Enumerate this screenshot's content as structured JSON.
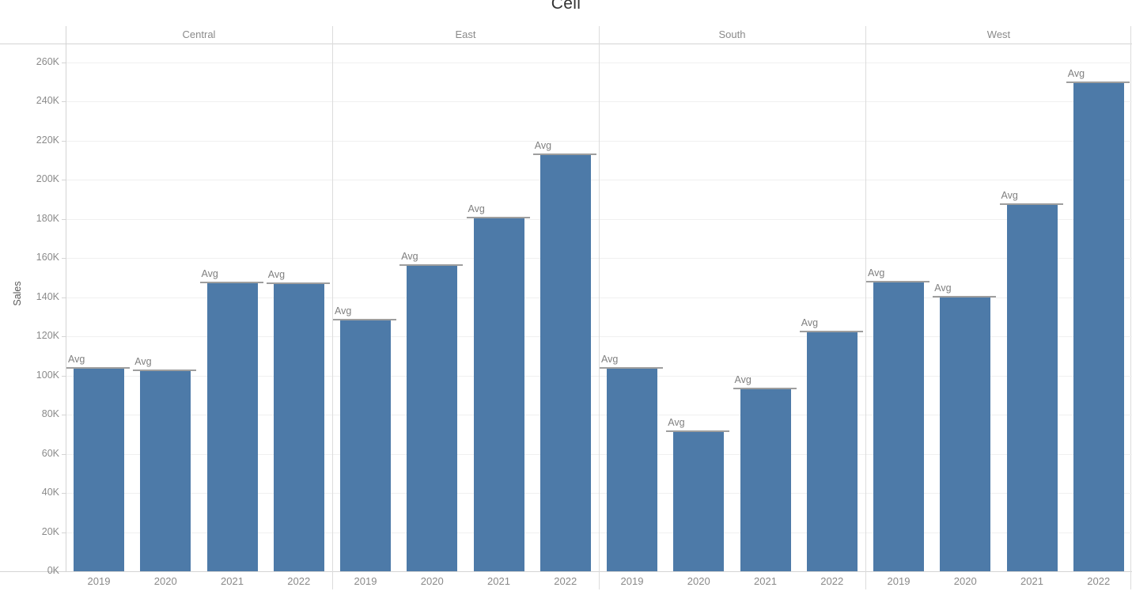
{
  "title": "Cell",
  "y_axis": {
    "label": "Sales",
    "tick_labels": [
      "0K",
      "20K",
      "40K",
      "60K",
      "80K",
      "100K",
      "120K",
      "140K",
      "160K",
      "180K",
      "200K",
      "220K",
      "240K",
      "260K"
    ],
    "tick_step_k": 20
  },
  "x_axis": {
    "years": [
      "2019",
      "2020",
      "2021",
      "2022"
    ]
  },
  "region_headers": [
    "Central",
    "East",
    "South",
    "West"
  ],
  "reference_line": {
    "label": "Avg",
    "scope": "Cell"
  },
  "colors": {
    "bar": "#4d7aa8",
    "reference_line": "#9e9e9e",
    "reference_label": "#7f7f7f",
    "axis_text": "#8a8a8a",
    "title_text": "#323232",
    "gridline": "#f0f0f0",
    "divider": "#dcdcdc"
  },
  "chart_data": {
    "type": "bar",
    "title": "Cell",
    "xlabel": "",
    "ylabel": "Sales",
    "categories": [
      "2019",
      "2020",
      "2021",
      "2022"
    ],
    "series": [
      {
        "name": "Central",
        "values": [
          103800,
          102900,
          147400,
          147100
        ]
      },
      {
        "name": "East",
        "values": [
          128700,
          156300,
          180700,
          213100
        ]
      },
      {
        "name": "South",
        "values": [
          103800,
          71700,
          93600,
          122500
        ]
      },
      {
        "name": "West",
        "values": [
          147900,
          140300,
          187500,
          249800
        ]
      }
    ],
    "ylim": [
      0,
      270000
    ],
    "y_tick_interval": 20000,
    "grid": true,
    "legend": false,
    "annotations": "Every bar carries an 'Avg' reference line drawn at the bar's own value (per-cell average); reference line scope shown in title: Cell"
  }
}
